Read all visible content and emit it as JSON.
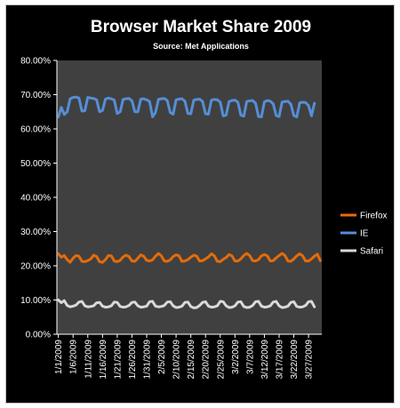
{
  "chart_data": {
    "type": "line",
    "title": "Browser Market Share 2009",
    "subtitle": "Source: Met Applications",
    "xlabel": "",
    "ylabel": "",
    "ylim": [
      0,
      80
    ],
    "y_ticks": [
      "0.00%",
      "10.00%",
      "20.00%",
      "30.00%",
      "40.00%",
      "50.00%",
      "60.00%",
      "70.00%",
      "80.00%"
    ],
    "x_ticks": [
      "1/1/2009",
      "1/6/2009",
      "1/11/2009",
      "1/16/2009",
      "1/21/2009",
      "1/26/2009",
      "1/31/2009",
      "2/5/2009",
      "2/10/2009",
      "2/15/2009",
      "2/20/2009",
      "2/25/2009",
      "3/2/2009",
      "3/7/2009",
      "3/12/2009",
      "3/17/2009",
      "3/22/2009",
      "3/27/2009"
    ],
    "grid": false,
    "legend_position": "right",
    "series": [
      {
        "name": "Firefox",
        "color": "#e46c0a",
        "values": [
          23.5,
          22.5,
          23.0,
          21.8,
          21.0,
          22.2,
          23.0,
          22.8,
          21.3,
          21.2,
          21.5,
          22.0,
          23.1,
          22.7,
          21.2,
          21.0,
          21.8,
          23.0,
          22.9,
          21.4,
          21.2,
          21.6,
          22.6,
          23.1,
          22.7,
          21.4,
          21.3,
          22.2,
          23.2,
          22.8,
          21.6,
          21.4,
          21.7,
          22.8,
          23.6,
          22.9,
          21.4,
          21.3,
          21.7,
          22.7,
          23.2,
          22.9,
          21.3,
          21.4,
          21.8,
          22.5,
          23.1,
          22.8,
          21.4,
          21.5,
          22.0,
          22.6,
          23.5,
          22.9,
          21.3,
          21.2,
          21.9,
          22.4,
          23.3,
          22.9,
          21.4,
          21.4,
          22.0,
          23.0,
          23.6,
          23.0,
          21.5,
          21.4,
          21.8,
          22.9,
          23.3,
          22.9,
          21.4,
          21.5,
          22.3,
          23.0,
          23.6,
          23.0,
          21.4,
          21.3,
          22.0,
          22.9,
          23.5,
          22.9,
          21.4,
          21.4,
          22.0,
          22.8,
          23.4,
          21.5
        ]
      },
      {
        "name": "IE",
        "color": "#558ed5",
        "values": [
          63.5,
          66.3,
          64.2,
          65.0,
          68.8,
          69.2,
          69.3,
          69.0,
          65.2,
          65.3,
          69.2,
          69.0,
          68.9,
          68.5,
          65.0,
          65.4,
          68.7,
          69.0,
          68.8,
          68.4,
          64.5,
          65.0,
          68.6,
          68.8,
          68.9,
          68.2,
          65.0,
          65.0,
          68.7,
          68.8,
          68.5,
          68.0,
          63.5,
          64.8,
          68.6,
          68.8,
          68.9,
          68.3,
          64.8,
          64.3,
          68.5,
          68.7,
          68.8,
          68.1,
          64.5,
          64.4,
          68.4,
          68.6,
          68.7,
          68.0,
          64.4,
          64.3,
          68.4,
          68.6,
          68.5,
          67.8,
          63.8,
          64.0,
          68.0,
          68.3,
          68.4,
          67.8,
          64.0,
          63.7,
          68.0,
          68.2,
          68.3,
          67.5,
          63.6,
          63.5,
          67.9,
          68.3,
          68.1,
          67.3,
          63.9,
          63.6,
          67.8,
          68.0,
          68.1,
          67.2,
          63.9,
          63.5,
          67.6,
          67.8,
          67.7,
          66.8,
          63.8,
          67.5
        ]
      },
      {
        "name": "Safari",
        "color": "#d9d9d9",
        "values": [
          10.0,
          9.2,
          9.8,
          8.4,
          8.0,
          8.2,
          8.5,
          9.4,
          9.6,
          8.3,
          8.0,
          8.1,
          8.3,
          9.2,
          9.3,
          8.2,
          7.9,
          8.0,
          8.3,
          9.4,
          9.3,
          8.1,
          7.9,
          8.0,
          8.4,
          9.3,
          9.4,
          8.3,
          7.9,
          8.0,
          8.2,
          9.5,
          9.6,
          8.2,
          8.0,
          8.1,
          8.4,
          9.4,
          9.5,
          8.3,
          7.8,
          7.9,
          8.2,
          9.3,
          9.4,
          8.1,
          7.7,
          7.8,
          8.4,
          9.3,
          9.5,
          8.2,
          7.9,
          8.0,
          8.3,
          9.6,
          9.5,
          8.3,
          7.8,
          7.9,
          8.3,
          9.4,
          9.5,
          8.1,
          7.8,
          7.9,
          8.4,
          9.5,
          9.6,
          8.2,
          7.9,
          8.0,
          8.3,
          9.4,
          9.6,
          8.3,
          7.8,
          7.9,
          8.2,
          9.3,
          9.5,
          8.1,
          7.9,
          8.0,
          8.4,
          9.5,
          9.6,
          8.0
        ]
      }
    ]
  }
}
